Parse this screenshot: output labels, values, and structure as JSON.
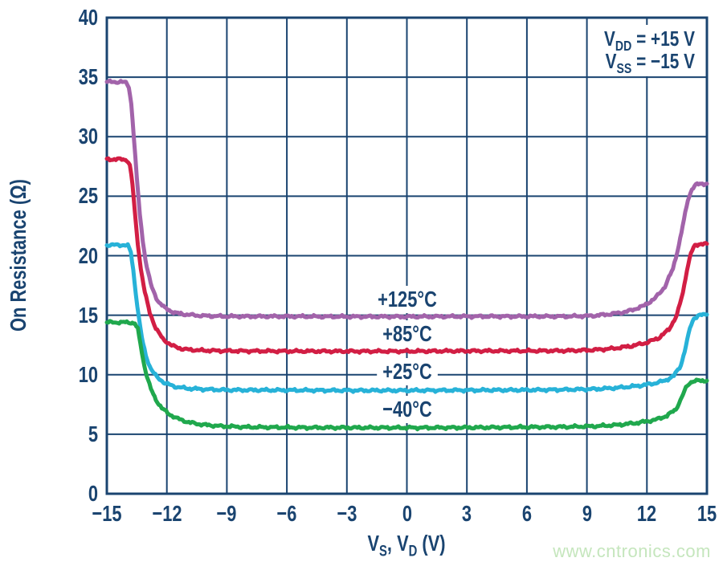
{
  "chart_data": {
    "type": "line",
    "title": "",
    "ylabel": "On Resistance (Ω)",
    "xlabel_parts": {
      "pre": "V",
      "sub1": "S",
      "mid": ", V",
      "sub2": "D",
      "post": " (V)"
    },
    "xlim": [
      -15,
      15
    ],
    "ylim": [
      0,
      40
    ],
    "grid": true,
    "legend_position": "inline-labels",
    "axis_color": "#1a4470",
    "xticks": [
      {
        "v": -15,
        "label": "−15"
      },
      {
        "v": -12,
        "label": "−12"
      },
      {
        "v": -9,
        "label": "−9"
      },
      {
        "v": -6,
        "label": "−6"
      },
      {
        "v": -3,
        "label": "−3"
      },
      {
        "v": 0,
        "label": "0"
      },
      {
        "v": 3,
        "label": "3"
      },
      {
        "v": 6,
        "label": "6"
      },
      {
        "v": 9,
        "label": "9"
      },
      {
        "v": 12,
        "label": "12"
      },
      {
        "v": 15,
        "label": "15"
      }
    ],
    "yticks": [
      {
        "v": 0,
        "label": "0"
      },
      {
        "v": 5,
        "label": "5"
      },
      {
        "v": 10,
        "label": "10"
      },
      {
        "v": 15,
        "label": "15"
      },
      {
        "v": 20,
        "label": "20"
      },
      {
        "v": 25,
        "label": "25"
      },
      {
        "v": 30,
        "label": "30"
      },
      {
        "v": 35,
        "label": "35"
      },
      {
        "v": 40,
        "label": "40"
      }
    ],
    "annotation": {
      "lines": [
        {
          "pre": "V",
          "sub": "DD",
          "post": " = +15 V"
        },
        {
          "pre": "V",
          "sub": "SS",
          "post": " = −15 V"
        }
      ]
    },
    "series": [
      {
        "name": "plus125c",
        "label": "+125°C",
        "color": "#a263aa",
        "label_pos": {
          "x": 0,
          "y": 16.3
        },
        "points": [
          [
            -15,
            34.6
          ],
          [
            -14.3,
            34.6
          ],
          [
            -14.05,
            34.55
          ],
          [
            -13.9,
            34.2
          ],
          [
            -13.78,
            32.8
          ],
          [
            -13.65,
            30.0
          ],
          [
            -13.5,
            26.5
          ],
          [
            -13.35,
            23.5
          ],
          [
            -13.2,
            21.2
          ],
          [
            -13.0,
            19.0
          ],
          [
            -12.75,
            17.3
          ],
          [
            -12.45,
            16.2
          ],
          [
            -12.1,
            15.6
          ],
          [
            -11.6,
            15.2
          ],
          [
            -11.0,
            15.05
          ],
          [
            -10.2,
            14.95
          ],
          [
            -9,
            14.9
          ],
          [
            -6,
            14.9
          ],
          [
            -3,
            14.88
          ],
          [
            0,
            14.88
          ],
          [
            3,
            14.9
          ],
          [
            6,
            14.9
          ],
          [
            8,
            14.9
          ],
          [
            9.3,
            14.95
          ],
          [
            10.2,
            15.1
          ],
          [
            11,
            15.3
          ],
          [
            11.8,
            15.75
          ],
          [
            12.4,
            16.4
          ],
          [
            12.9,
            17.4
          ],
          [
            13.3,
            18.9
          ],
          [
            13.6,
            20.9
          ],
          [
            13.85,
            23.0
          ],
          [
            14.05,
            24.7
          ],
          [
            14.25,
            25.6
          ],
          [
            14.45,
            25.95
          ],
          [
            14.7,
            26.05
          ],
          [
            15,
            26.05
          ]
        ]
      },
      {
        "name": "plus85c",
        "label": "+85°C",
        "color": "#d21e44",
        "label_pos": {
          "x": 0,
          "y": 13.4
        },
        "points": [
          [
            -15,
            28.1
          ],
          [
            -14.25,
            28.1
          ],
          [
            -14.0,
            28.05
          ],
          [
            -13.85,
            27.6
          ],
          [
            -13.72,
            26.0
          ],
          [
            -13.6,
            23.6
          ],
          [
            -13.45,
            21.0
          ],
          [
            -13.3,
            18.9
          ],
          [
            -13.1,
            16.9
          ],
          [
            -12.85,
            15.2
          ],
          [
            -12.55,
            13.9
          ],
          [
            -12.2,
            13.0
          ],
          [
            -11.75,
            12.45
          ],
          [
            -11.2,
            12.15
          ],
          [
            -10.4,
            12.05
          ],
          [
            -9,
            12.0
          ],
          [
            -6,
            11.98
          ],
          [
            -3,
            11.97
          ],
          [
            0,
            11.97
          ],
          [
            3,
            12.0
          ],
          [
            6,
            12.0
          ],
          [
            8,
            12.02
          ],
          [
            9.3,
            12.08
          ],
          [
            10.3,
            12.2
          ],
          [
            11.2,
            12.4
          ],
          [
            12.0,
            12.7
          ],
          [
            12.6,
            13.1
          ],
          [
            13.1,
            13.8
          ],
          [
            13.5,
            15.0
          ],
          [
            13.8,
            16.9
          ],
          [
            14.0,
            18.8
          ],
          [
            14.2,
            20.2
          ],
          [
            14.4,
            20.85
          ],
          [
            14.65,
            21.0
          ],
          [
            15,
            21.0
          ]
        ]
      },
      {
        "name": "plus25c",
        "label": "+25°C",
        "color": "#27b2d8",
        "label_pos": {
          "x": 0,
          "y": 10.25
        },
        "points": [
          [
            -15,
            20.9
          ],
          [
            -14.2,
            20.9
          ],
          [
            -13.95,
            20.85
          ],
          [
            -13.8,
            20.3
          ],
          [
            -13.68,
            18.8
          ],
          [
            -13.55,
            16.8
          ],
          [
            -13.4,
            14.8
          ],
          [
            -13.25,
            13.1
          ],
          [
            -13.05,
            11.6
          ],
          [
            -12.8,
            10.5
          ],
          [
            -12.5,
            9.8
          ],
          [
            -12.1,
            9.3
          ],
          [
            -11.6,
            9.0
          ],
          [
            -11.0,
            8.85
          ],
          [
            -10.2,
            8.78
          ],
          [
            -9,
            8.72
          ],
          [
            -6,
            8.7
          ],
          [
            -3,
            8.68
          ],
          [
            0,
            8.68
          ],
          [
            3,
            8.7
          ],
          [
            6,
            8.72
          ],
          [
            8,
            8.75
          ],
          [
            9.5,
            8.8
          ],
          [
            10.5,
            8.9
          ],
          [
            11.5,
            9.05
          ],
          [
            12.3,
            9.25
          ],
          [
            12.9,
            9.5
          ],
          [
            13.35,
            9.9
          ],
          [
            13.7,
            10.8
          ],
          [
            13.95,
            12.4
          ],
          [
            14.15,
            13.9
          ],
          [
            14.35,
            14.75
          ],
          [
            14.6,
            15.0
          ],
          [
            15,
            15.05
          ]
        ]
      },
      {
        "name": "minus40c",
        "label": "−40°C",
        "color": "#20a84d",
        "label_pos": {
          "x": 0,
          "y": 7.1
        },
        "points": [
          [
            -15,
            14.4
          ],
          [
            -13.85,
            14.4
          ],
          [
            -13.6,
            14.3
          ],
          [
            -13.45,
            13.8
          ],
          [
            -13.32,
            12.6
          ],
          [
            -13.18,
            11.2
          ],
          [
            -13.0,
            9.9
          ],
          [
            -12.8,
            8.8
          ],
          [
            -12.55,
            7.9
          ],
          [
            -12.25,
            7.2
          ],
          [
            -11.9,
            6.7
          ],
          [
            -11.45,
            6.3
          ],
          [
            -10.9,
            6.0
          ],
          [
            -10.2,
            5.8
          ],
          [
            -9.3,
            5.68
          ],
          [
            -8,
            5.6
          ],
          [
            -5,
            5.56
          ],
          [
            -2,
            5.55
          ],
          [
            1,
            5.55
          ],
          [
            4,
            5.57
          ],
          [
            6,
            5.6
          ],
          [
            8,
            5.62
          ],
          [
            9.5,
            5.68
          ],
          [
            10.5,
            5.78
          ],
          [
            11.5,
            5.95
          ],
          [
            12.4,
            6.2
          ],
          [
            13.0,
            6.55
          ],
          [
            13.45,
            7.1
          ],
          [
            13.75,
            8.1
          ],
          [
            13.95,
            8.9
          ],
          [
            14.15,
            9.35
          ],
          [
            14.4,
            9.48
          ],
          [
            14.7,
            9.5
          ],
          [
            15,
            9.5
          ]
        ]
      }
    ]
  },
  "watermark": {
    "text": "www.cntronics.com",
    "color": "#c5e6bd"
  }
}
